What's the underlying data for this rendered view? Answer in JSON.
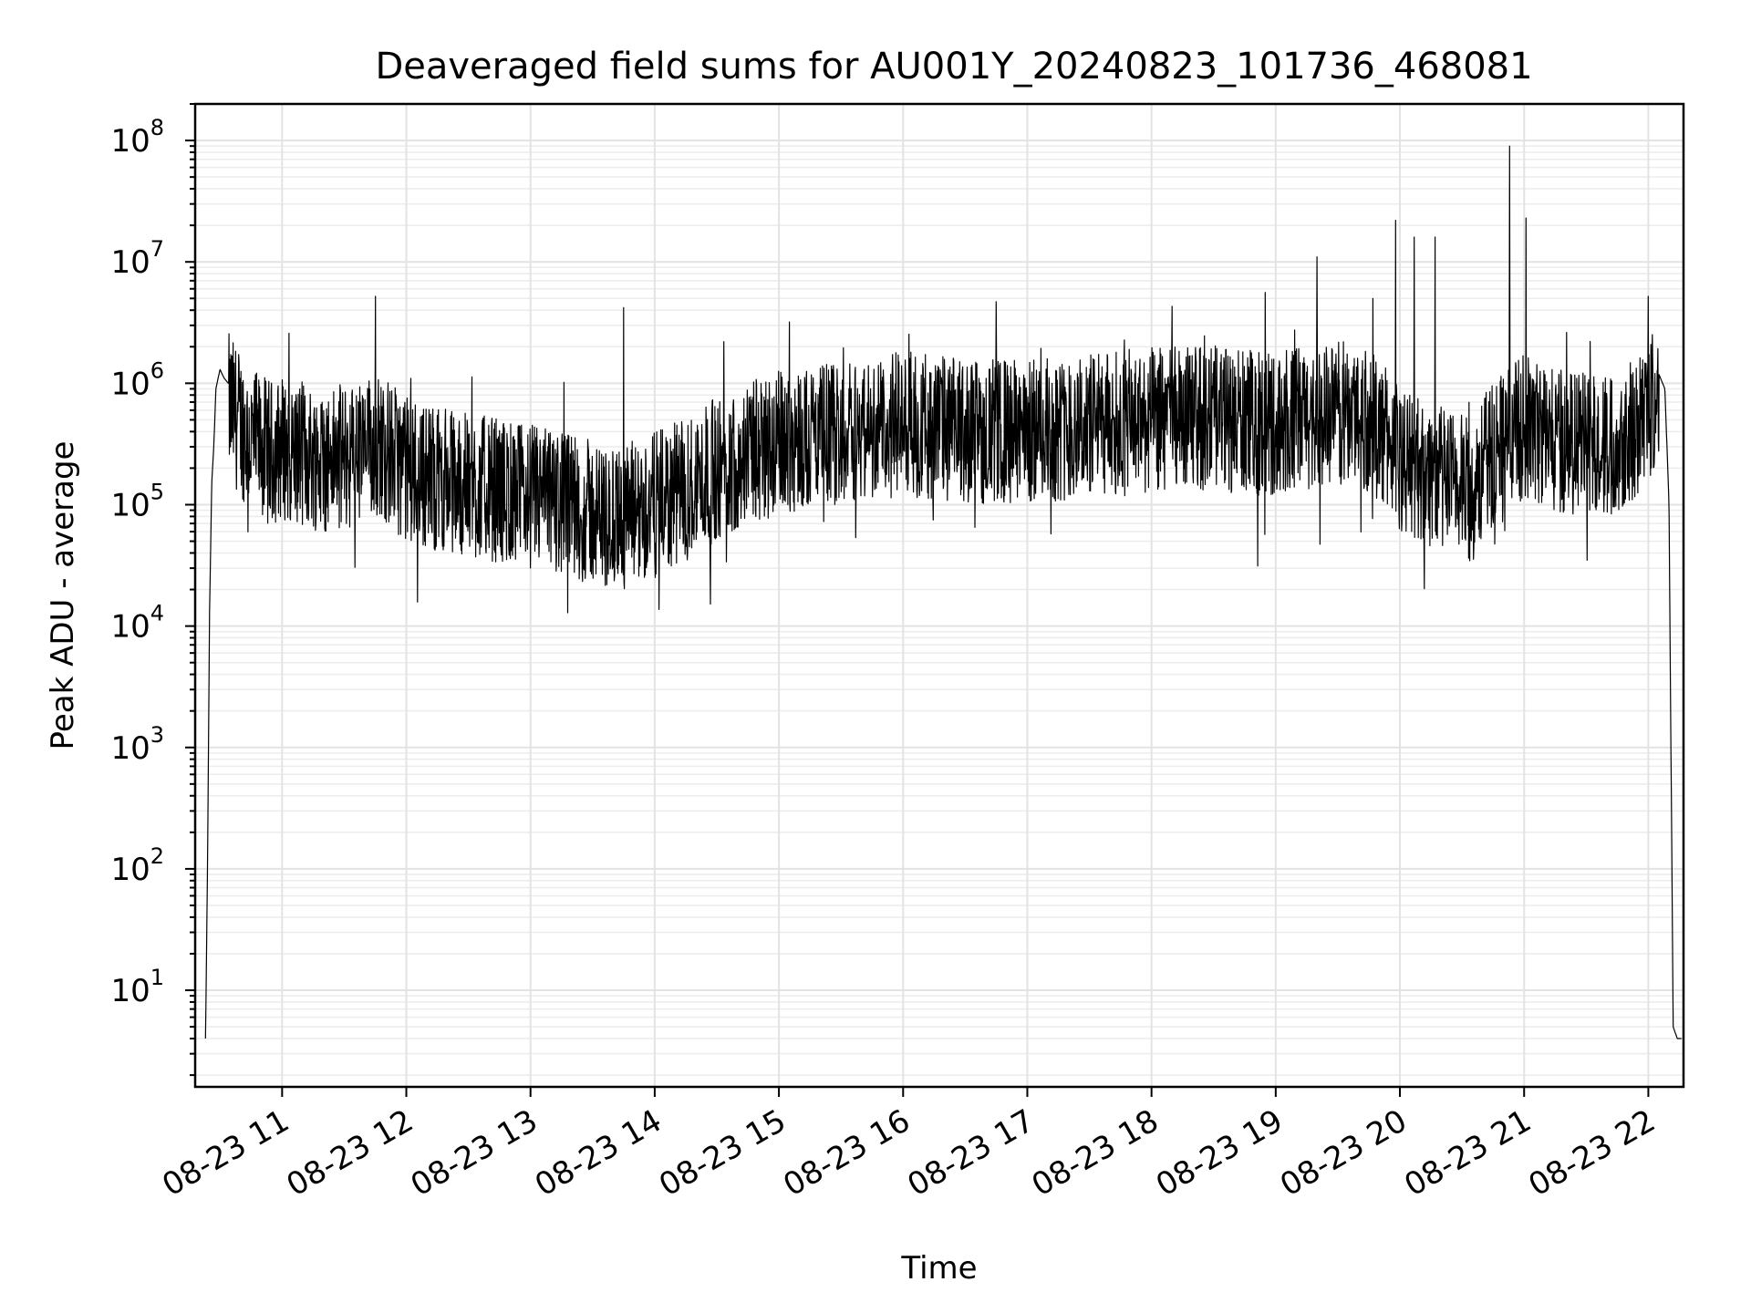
{
  "chart_data": {
    "type": "line",
    "title": "Deaveraged field sums for AU001Y_20240823_101736_468081",
    "xlabel": "Time",
    "ylabel": "Peak ADU - average",
    "y_scale": "log",
    "ylim": [
      1.6,
      200000000
    ],
    "xlim": [
      "2024-08-23 10:18",
      "2024-08-23 22:17"
    ],
    "grid": true,
    "x_tick_labels": [
      "08-23 11",
      "08-23 12",
      "08-23 13",
      "08-23 14",
      "08-23 15",
      "08-23 16",
      "08-23 17",
      "08-23 18",
      "08-23 19",
      "08-23 20",
      "08-23 21",
      "08-23 22"
    ],
    "x_tick_times": [
      "2024-08-23 11:00",
      "2024-08-23 12:00",
      "2024-08-23 13:00",
      "2024-08-23 14:00",
      "2024-08-23 15:00",
      "2024-08-23 16:00",
      "2024-08-23 17:00",
      "2024-08-23 18:00",
      "2024-08-23 19:00",
      "2024-08-23 20:00",
      "2024-08-23 21:00",
      "2024-08-23 22:00"
    ],
    "y_tick_labels": [
      {
        "base": "10",
        "exp": "1",
        "value": 10
      },
      {
        "base": "10",
        "exp": "2",
        "value": 100
      },
      {
        "base": "10",
        "exp": "3",
        "value": 1000
      },
      {
        "base": "10",
        "exp": "4",
        "value": 10000
      },
      {
        "base": "10",
        "exp": "5",
        "value": 100000
      },
      {
        "base": "10",
        "exp": "6",
        "value": 1000000
      },
      {
        "base": "10",
        "exp": "7",
        "value": 10000000
      },
      {
        "base": "10",
        "exp": "8",
        "value": 100000000
      }
    ],
    "series": [
      {
        "color": "#000000",
        "x": [
          "2024-08-23 10:23",
          "2024-08-23 10:24",
          "2024-08-23 10:25",
          "2024-08-23 10:26",
          "2024-08-23 10:27",
          "2024-08-23 10:28",
          "2024-08-23 10:30",
          "2024-08-23 10:32",
          "2024-08-23 10:34",
          "2024-08-23 10:36",
          "2024-08-23 10:40",
          "2024-08-23 10:45",
          "2024-08-23 10:50",
          "2024-08-23 10:55",
          "2024-08-23 11:00",
          "2024-08-23 11:10",
          "2024-08-23 11:20",
          "2024-08-23 11:30",
          "2024-08-23 11:40",
          "2024-08-23 11:45",
          "2024-08-23 11:50",
          "2024-08-23 12:00",
          "2024-08-23 12:15",
          "2024-08-23 12:30",
          "2024-08-23 12:45",
          "2024-08-23 13:00",
          "2024-08-23 13:15",
          "2024-08-23 13:30",
          "2024-08-23 13:40",
          "2024-08-23 13:45",
          "2024-08-23 14:00",
          "2024-08-23 14:15",
          "2024-08-23 14:30",
          "2024-08-23 14:45",
          "2024-08-23 15:00",
          "2024-08-23 15:15",
          "2024-08-23 15:30",
          "2024-08-23 15:45",
          "2024-08-23 16:00",
          "2024-08-23 16:20",
          "2024-08-23 16:40",
          "2024-08-23 17:00",
          "2024-08-23 17:20",
          "2024-08-23 17:40",
          "2024-08-23 18:00",
          "2024-08-23 18:20",
          "2024-08-23 18:40",
          "2024-08-23 19:00",
          "2024-08-23 19:20",
          "2024-08-23 19:40",
          "2024-08-23 19:55",
          "2024-08-23 20:00",
          "2024-08-23 20:20",
          "2024-08-23 20:35",
          "2024-08-23 20:50",
          "2024-08-23 21:00",
          "2024-08-23 21:20",
          "2024-08-23 21:40",
          "2024-08-23 21:55",
          "2024-08-23 22:05",
          "2024-08-23 22:08",
          "2024-08-23 22:10",
          "2024-08-23 22:12",
          "2024-08-23 22:14",
          "2024-08-23 22:16"
        ],
        "values": [
          4,
          120,
          15000,
          150000,
          300000,
          900000,
          1300000,
          1100000,
          1000000,
          900000,
          700000,
          500000,
          450000,
          400000,
          450000,
          400000,
          350000,
          380000,
          400000,
          500000,
          420000,
          300000,
          250000,
          220000,
          200000,
          180000,
          160000,
          130000,
          110000,
          120000,
          150000,
          200000,
          300000,
          400000,
          500000,
          550000,
          600000,
          650000,
          700000,
          650000,
          600000,
          600000,
          650000,
          700000,
          750000,
          800000,
          750000,
          700000,
          800000,
          900000,
          500000,
          350000,
          250000,
          200000,
          600000,
          650000,
          500000,
          450000,
          700000,
          1200000,
          900000,
          100000,
          5,
          4,
          4
        ],
        "spikes": [
          {
            "x": "2024-08-23 11:45",
            "y": 5200000
          },
          {
            "x": "2024-08-23 13:45",
            "y": 4200000
          },
          {
            "x": "2024-08-23 15:05",
            "y": 3200000
          },
          {
            "x": "2024-08-23 16:45",
            "y": 4700000
          },
          {
            "x": "2024-08-23 18:10",
            "y": 4300000
          },
          {
            "x": "2024-08-23 18:55",
            "y": 5600000
          },
          {
            "x": "2024-08-23 19:20",
            "y": 11000000
          },
          {
            "x": "2024-08-23 19:47",
            "y": 5000000
          },
          {
            "x": "2024-08-23 19:58",
            "y": 22000000
          },
          {
            "x": "2024-08-23 20:07",
            "y": 16000000
          },
          {
            "x": "2024-08-23 20:17",
            "y": 16000000
          },
          {
            "x": "2024-08-23 20:53",
            "y": 90000000
          },
          {
            "x": "2024-08-23 21:01",
            "y": 23000000
          },
          {
            "x": "2024-08-23 22:00",
            "y": 5200000
          }
        ]
      }
    ]
  }
}
